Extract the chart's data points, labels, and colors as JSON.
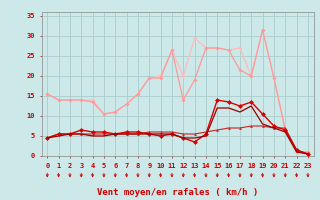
{
  "x": [
    0,
    1,
    2,
    3,
    4,
    5,
    6,
    7,
    8,
    9,
    10,
    11,
    12,
    13,
    14,
    15,
    16,
    17,
    18,
    19,
    20,
    21,
    22,
    23
  ],
  "line1": [
    15.5,
    14.0,
    14.0,
    14.0,
    14.0,
    10.5,
    11.0,
    13.0,
    15.5,
    19.5,
    20.0,
    26.5,
    20.0,
    29.5,
    27.0,
    27.0,
    26.5,
    27.0,
    20.0,
    31.5,
    19.5,
    6.5,
    1.0,
    1.0
  ],
  "line2": [
    15.5,
    14.0,
    14.0,
    14.0,
    13.5,
    10.5,
    11.0,
    13.0,
    15.5,
    19.5,
    19.5,
    26.5,
    14.0,
    19.0,
    27.0,
    27.0,
    26.5,
    21.5,
    20.0,
    31.5,
    19.5,
    6.5,
    1.0,
    1.0
  ],
  "line3": [
    4.5,
    5.5,
    5.5,
    6.5,
    6.0,
    6.0,
    5.5,
    6.0,
    6.0,
    5.5,
    5.0,
    5.5,
    4.5,
    3.5,
    5.5,
    14.0,
    13.5,
    12.5,
    13.5,
    10.5,
    7.5,
    6.5,
    1.5,
    0.5
  ],
  "line4": [
    4.5,
    5.0,
    5.5,
    5.5,
    5.0,
    5.0,
    5.5,
    5.5,
    5.5,
    5.5,
    5.5,
    5.5,
    4.5,
    4.5,
    5.0,
    12.0,
    12.0,
    11.0,
    12.5,
    8.0,
    7.0,
    6.0,
    1.0,
    0.5
  ],
  "line5": [
    4.5,
    5.5,
    5.5,
    5.5,
    5.5,
    5.5,
    5.5,
    5.5,
    5.5,
    6.0,
    6.0,
    6.0,
    5.5,
    5.5,
    6.0,
    6.5,
    7.0,
    7.0,
    7.5,
    7.5,
    7.0,
    7.0,
    1.5,
    0.5
  ],
  "bg_color": "#cce8e8",
  "grid_color": "#aacccc",
  "line1_color": "#ffbbbb",
  "line2_color": "#ff9999",
  "line3_color": "#dd0000",
  "line4_color": "#990000",
  "line5_color": "#cc2222",
  "arrow_color": "#cc0000",
  "xlabel": "Vent moyen/en rafales ( km/h )",
  "xlabel_color": "#cc0000",
  "tick_color": "#cc0000",
  "ylim": [
    0,
    36
  ],
  "xlim": [
    -0.5,
    23.5
  ],
  "yticks": [
    0,
    5,
    10,
    15,
    20,
    25,
    30,
    35
  ],
  "ytick_labels": [
    "0",
    "5",
    "10",
    "15",
    "20",
    "25",
    "30",
    "35"
  ]
}
